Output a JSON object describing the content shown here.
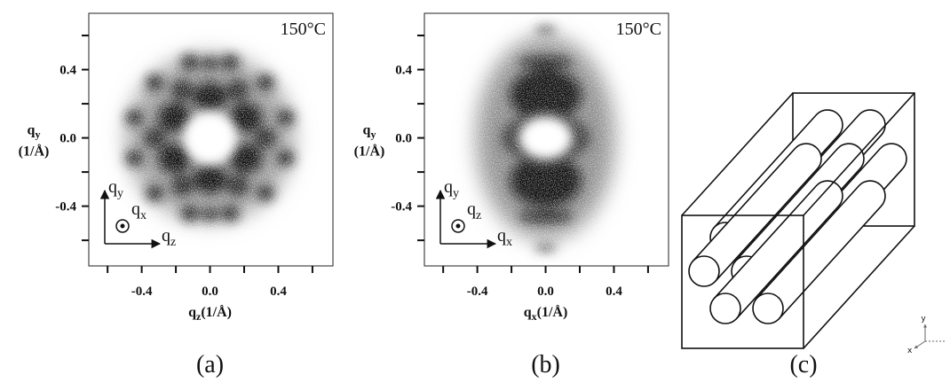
{
  "panels": [
    {
      "label": "(a)",
      "annotation": "150°C",
      "xlabel": {
        "symbol": "q",
        "subscript": "z",
        "unit": "(1/Å)"
      },
      "ylabel": {
        "symbol": "q",
        "subscript": "y",
        "unit": "(1/Å)"
      },
      "xlim": [
        -0.71,
        0.72
      ],
      "ylim": [
        -0.75,
        0.73
      ],
      "xticks": [
        -0.4,
        {
          "value": 0,
          "label": "0.0"
        },
        0.4
      ],
      "yticks": [
        -0.4,
        {
          "value": 0,
          "label": "0.0"
        },
        0.4
      ],
      "inset": {
        "up": {
          "symbol": "q",
          "subscript": "y"
        },
        "out": {
          "symbol": "q",
          "subscript": "x"
        },
        "right": {
          "symbol": "q",
          "subscript": "z"
        }
      }
    },
    {
      "label": "(b)",
      "annotation": "150°C",
      "xlabel": {
        "symbol": "q",
        "subscript": "x",
        "unit": "(1/Å)"
      },
      "ylabel": {
        "symbol": "q",
        "subscript": "y",
        "unit": "(1/Å)"
      },
      "xlim": [
        -0.71,
        0.72
      ],
      "ylim": [
        -0.75,
        0.73
      ],
      "xticks": [
        -0.4,
        {
          "value": 0,
          "label": "0.0"
        },
        0.4
      ],
      "yticks": [
        -0.4,
        {
          "value": 0,
          "label": "0.0"
        },
        0.4
      ],
      "inset": {
        "up": {
          "symbol": "q",
          "subscript": "y"
        },
        "out": {
          "symbol": "q",
          "subscript": "z"
        },
        "right": {
          "symbol": "q",
          "subscript": "x"
        }
      }
    }
  ],
  "cube": {
    "label": "(c)",
    "axes": {
      "y": "y",
      "x": "x"
    }
  }
}
